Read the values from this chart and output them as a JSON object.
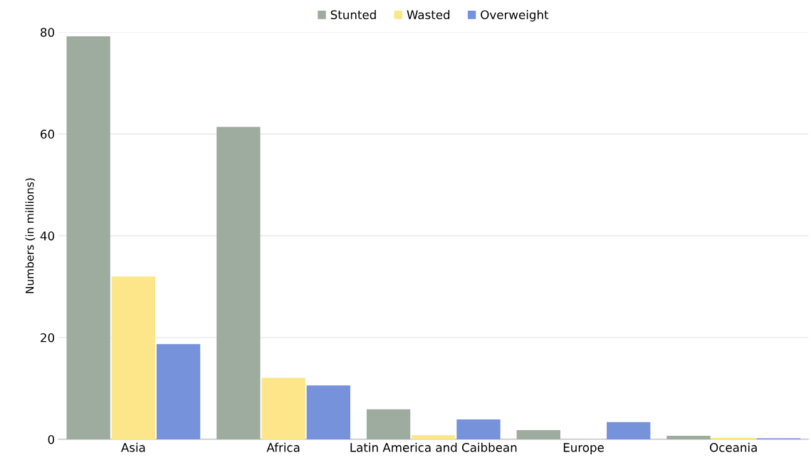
{
  "chart_data": {
    "type": "bar",
    "ylabel": "Numbers (in millions)",
    "categories": [
      "Asia",
      "Africa",
      "Latin America and Caibbean",
      "Europe",
      "Oceania"
    ],
    "series": [
      {
        "name": "Stunted",
        "color": "#9eab9f",
        "values": [
          79.2,
          61.4,
          5.9,
          1.8,
          0.7
        ]
      },
      {
        "name": "Wasted",
        "color": "#fde68a",
        "values": [
          32.0,
          12.1,
          0.8,
          null,
          0.3
        ]
      },
      {
        "name": "Overweight",
        "color": "#7592db",
        "values": [
          18.7,
          10.6,
          3.9,
          3.4,
          0.2
        ]
      }
    ],
    "ylim": [
      0,
      80
    ],
    "yticks": [
      0,
      20,
      40,
      60,
      80
    ],
    "grid": "y",
    "legend": "top"
  }
}
